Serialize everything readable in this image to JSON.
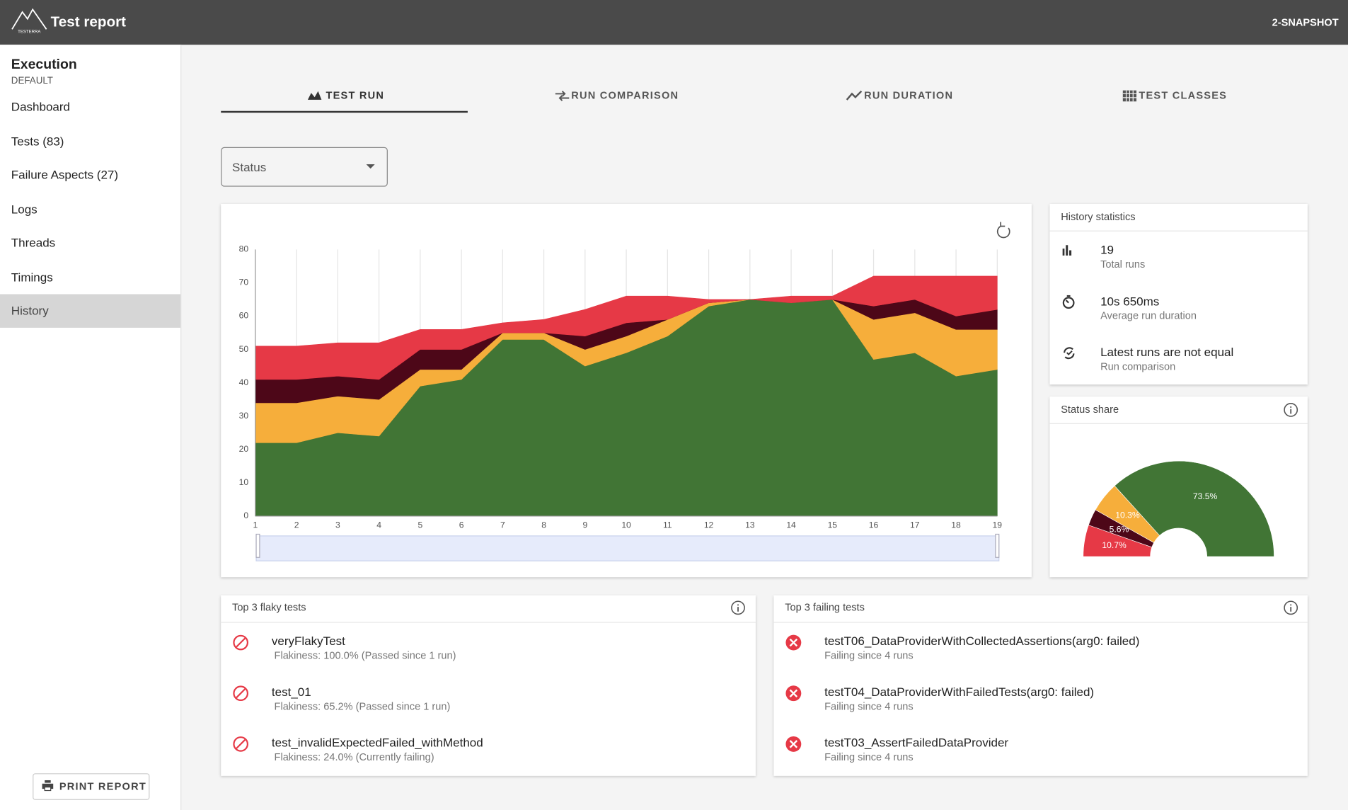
{
  "header": {
    "logo_text": "TESTERRA",
    "title": "Test report",
    "version": "2-SNAPSHOT"
  },
  "sidebar": {
    "title": "Execution",
    "subtitle": "DEFAULT",
    "items": [
      "Dashboard",
      "Tests (83)",
      "Failure Aspects (27)",
      "Logs",
      "Threads",
      "Timings",
      "History"
    ],
    "print_button": "PRINT REPORT"
  },
  "tabs": [
    "TEST RUN",
    "RUN COMPARISON",
    "RUN DURATION",
    "TEST CLASSES"
  ],
  "filter": {
    "label": "Status"
  },
  "chart_data": [
    {
      "type": "area",
      "stacked": true,
      "grid": true,
      "x": [
        1,
        2,
        3,
        4,
        5,
        6,
        7,
        8,
        9,
        10,
        11,
        12,
        13,
        14,
        15,
        16,
        17,
        18,
        19
      ],
      "xlim": [
        1,
        19
      ],
      "xticks": [
        1,
        2,
        3,
        4,
        5,
        6,
        7,
        8,
        9,
        10,
        11,
        12,
        13,
        14,
        15,
        16,
        17,
        18,
        19
      ],
      "ylim": [
        0,
        80
      ],
      "yticks": [
        0,
        10,
        20,
        30,
        40,
        50,
        60,
        70,
        80
      ],
      "series": [
        {
          "color": "#417535",
          "values": [
            22,
            22,
            25,
            24,
            39,
            41,
            53,
            53,
            45,
            49,
            54,
            63,
            65,
            64,
            65,
            47,
            49,
            42,
            44
          ]
        },
        {
          "color": "#f6ae3b",
          "values": [
            12,
            12,
            11,
            11,
            5,
            3,
            2,
            2,
            5,
            5,
            5,
            1,
            0,
            0,
            0,
            12,
            12,
            14,
            12
          ]
        },
        {
          "color": "#4d0718",
          "values": [
            7,
            7,
            6,
            6,
            6,
            6,
            0,
            0,
            4,
            4,
            0,
            0,
            0,
            0,
            0,
            4,
            4,
            4,
            6
          ]
        },
        {
          "color": "#e63946",
          "values": [
            10,
            10,
            10,
            11,
            6,
            6,
            3,
            4,
            8,
            8,
            7,
            1,
            0,
            2,
            1,
            9,
            7,
            12,
            10
          ]
        }
      ]
    },
    {
      "type": "pie",
      "semicircle": true,
      "title": "Status share",
      "values": [
        10.7,
        5.6,
        10.3,
        73.5
      ],
      "value_labels": [
        "10.7%",
        "5.6%",
        "10.3%",
        "73.5%"
      ],
      "colors": [
        "#e63946",
        "#4d0718",
        "#f6ae3b",
        "#417535"
      ]
    }
  ],
  "history_statistics": {
    "title": "History statistics",
    "items": [
      {
        "value": 19,
        "label": "Total runs"
      },
      {
        "value": "10s 650ms",
        "label": "Average run duration"
      },
      {
        "value": "Latest runs are not equal",
        "label": "Run comparison"
      }
    ]
  },
  "flaky_tests": {
    "title": "Top 3 flaky tests",
    "items": [
      {
        "name": "veryFlakyTest",
        "detail": "Flakiness: 100.0% (Passed since 1 run)"
      },
      {
        "name": "test_01",
        "detail": "Flakiness: 65.2% (Passed since 1 run)"
      },
      {
        "name": "test_invalidExpectedFailed_withMethod",
        "detail": "Flakiness: 24.0% (Currently failing)"
      }
    ]
  },
  "failing_tests": {
    "title": "Top 3 failing tests",
    "items": [
      {
        "name": "testT06_DataProviderWithCollectedAssertions(arg0: failed)",
        "detail": "Failing since 4 runs"
      },
      {
        "name": "testT04_DataProviderWithFailedTests(arg0: failed)",
        "detail": "Failing since 4 runs"
      },
      {
        "name": "testT03_AssertFailedDataProvider",
        "detail": "Failing since 4 runs"
      }
    ]
  }
}
